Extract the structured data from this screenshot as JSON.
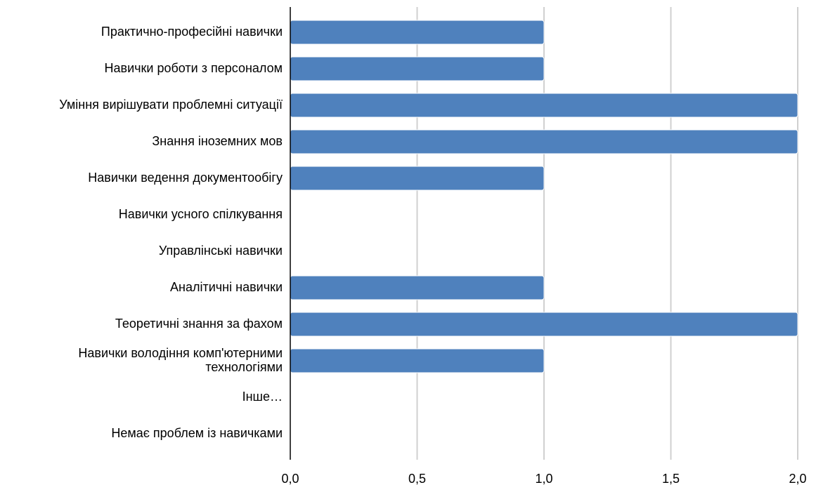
{
  "chart_data": {
    "type": "bar",
    "orientation": "horizontal",
    "categories": [
      "Практично-професійні навички",
      "Навички роботи з персоналом",
      "Уміння вирішувати проблемні ситуації",
      "Знання іноземних мов",
      "Навички ведення документообігу",
      "Навички усного спілкування",
      "Управлінські навички",
      "Аналітичні навички",
      "Теоретичні знання за фахом",
      "Навички володіння комп'ютерними технологіями",
      "Інше…",
      "Немає проблем із навичками"
    ],
    "category_display_lines": [
      [
        "Практично-професійні навички"
      ],
      [
        "Навички роботи з персоналом"
      ],
      [
        "Уміння вирішувати проблемні ситуації"
      ],
      [
        "Знання іноземних мов"
      ],
      [
        "Навички ведення документообігу"
      ],
      [
        "Навички усного спілкування"
      ],
      [
        "Управлінські навички"
      ],
      [
        "Аналітичні навички"
      ],
      [
        "Теоретичні знання за фахом"
      ],
      [
        "Навички володіння комп'ютерними",
        "технологіями"
      ],
      [
        "Інше…"
      ],
      [
        "Немає проблем із навичками"
      ]
    ],
    "values": [
      1,
      1,
      2,
      2,
      1,
      0,
      0,
      1,
      2,
      1,
      0,
      0
    ],
    "xlim": [
      0,
      2
    ],
    "xticks": [
      0,
      0.5,
      1,
      1.5,
      2
    ],
    "xtick_labels": [
      "0,0",
      "0,5",
      "1,0",
      "1,5",
      "2,0"
    ],
    "title": "",
    "xlabel": "",
    "ylabel": "",
    "grid": "vertical",
    "legend": "none",
    "bar_color": "#4f81bd",
    "bar_stroke_color": "#ffffff",
    "grid_color": "#d0d0d0",
    "axis_color": "#000000"
  }
}
